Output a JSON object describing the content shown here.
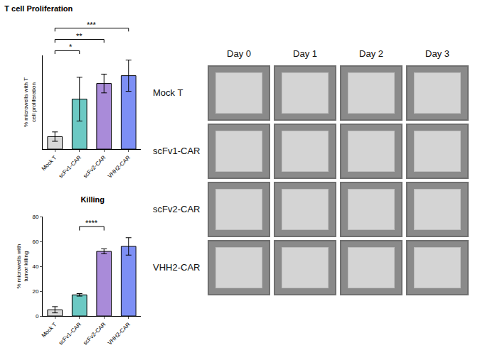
{
  "chart_data": [
    {
      "type": "bar",
      "title": "T cell Proliferation",
      "y_label": "% microwells with T cell proliferation",
      "categories": [
        "Mock T",
        "scFv1-CAR",
        "scFv2-CAR",
        "VHH2-CAR"
      ],
      "values": [
        4,
        16,
        21,
        23.5
      ],
      "errors": [
        1.5,
        7,
        3,
        5
      ],
      "colors": [
        "#d9d9d9",
        "#6cc9c4",
        "#a98bd9",
        "#7d8ff5"
      ],
      "ylim": [
        0,
        30
      ],
      "tick_labels": "x",
      "significance": [
        {
          "from": "Mock T",
          "to": "scFv1-CAR",
          "label": "*"
        },
        {
          "from": "Mock T",
          "to": "scFv2-CAR",
          "label": "**"
        },
        {
          "from": "Mock T",
          "to": "VHH2-CAR",
          "label": "***"
        }
      ]
    },
    {
      "type": "bar",
      "title": "Killing",
      "y_label": "% microwells with tumor killing",
      "categories": [
        "Mock T",
        "scFv1-CAR",
        "scFv2-CAR",
        "VHH2-CAR"
      ],
      "values": [
        5,
        17,
        52,
        56
      ],
      "errors": [
        2.5,
        1,
        2,
        7
      ],
      "colors": [
        "#d9d9d9",
        "#6cc9c4",
        "#a98bd9",
        "#7d8ff5"
      ],
      "ylim": [
        0,
        80
      ],
      "yticks": [
        0,
        20,
        40,
        60,
        80
      ],
      "significance": [
        {
          "from": "scFv1-CAR",
          "to": "scFv2-CAR",
          "label": "****"
        }
      ]
    }
  ],
  "image_grid": {
    "columns": [
      "Day 0",
      "Day 1",
      "Day 2",
      "Day 3"
    ],
    "rows": [
      "Mock T",
      "scFv1-CAR",
      "scFv2-CAR",
      "VHH2-CAR"
    ]
  }
}
